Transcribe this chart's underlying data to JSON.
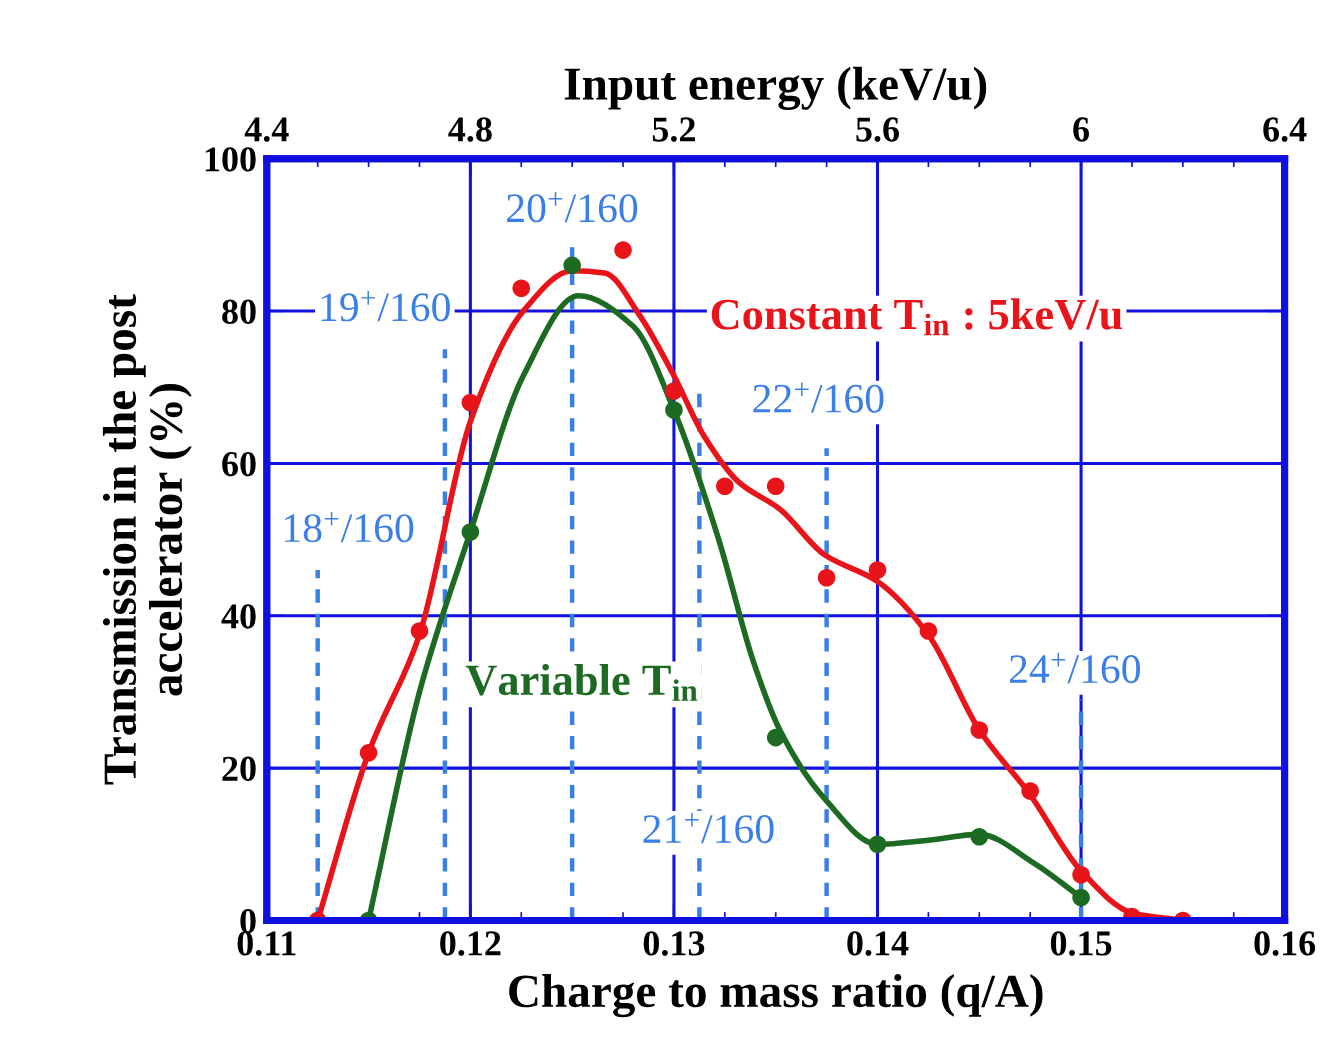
{
  "chart_data": {
    "type": "scatter",
    "xlabel": "Charge to mass ratio (q/A)",
    "ylabel": "Transmission in the post\naccelerator (%)",
    "x2label": "Input energy (keV/u)",
    "xlim": [
      0.11,
      0.16
    ],
    "xticks": [
      0.11,
      0.12,
      0.13,
      0.14,
      0.15,
      0.16
    ],
    "x2lim": [
      4.4,
      6.4
    ],
    "x2ticks": [
      4.4,
      4.8,
      5.2,
      5.6,
      6,
      6.4
    ],
    "ylim": [
      0,
      100
    ],
    "yticks": [
      0,
      20,
      40,
      60,
      80,
      100
    ],
    "grid": true,
    "legend": false,
    "series": [
      {
        "marker": "circle",
        "color": "#e8141a",
        "x": [
          0.1125,
          0.115,
          0.1175,
          0.12,
          0.1225,
          0.1275,
          0.13,
          0.1325,
          0.135,
          0.1375,
          0.14,
          0.1425,
          0.145,
          0.1475,
          0.15,
          0.1525,
          0.155
        ],
        "values": [
          0,
          22,
          38,
          68,
          83,
          88,
          69.5,
          57,
          57,
          45,
          46,
          38,
          25,
          17,
          6,
          0.5,
          0
        ]
      },
      {
        "marker": "circle",
        "color": "#1d6b22",
        "x": [
          0.115,
          0.12,
          0.125,
          0.13,
          0.135,
          0.14,
          0.145,
          0.15
        ],
        "values": [
          0,
          51,
          86,
          67,
          24,
          10,
          11,
          3
        ]
      },
      {
        "type": "line",
        "name": "Constant T$_{in}$ : 5keV/u",
        "color": "#e8141a",
        "x": [
          0.1125,
          0.115,
          0.1175,
          0.12,
          0.1226,
          0.125,
          0.1266,
          0.1283,
          0.13,
          0.1315,
          0.1332,
          0.1352,
          0.1374,
          0.14,
          0.1425,
          0.145,
          0.1475,
          0.15,
          0.1525,
          0.155
        ],
        "values": [
          0,
          22,
          37.5,
          65.5,
          80,
          85.3,
          85,
          79.5,
          71.5,
          63.5,
          57.5,
          54,
          48,
          44.5,
          37.5,
          25,
          16.5,
          6.5,
          1,
          0
        ]
      },
      {
        "type": "line",
        "name": "Variable T$_{in}$",
        "color": "#1d6b22",
        "x": [
          0.115,
          0.1175,
          0.12,
          0.1226,
          0.1253,
          0.128,
          0.13,
          0.1322,
          0.1339,
          0.1352,
          0.1374,
          0.14,
          0.1424,
          0.145,
          0.1477,
          0.15
        ],
        "values": [
          0,
          30,
          51,
          71.5,
          82,
          78,
          67,
          50,
          34,
          25,
          16,
          10,
          10.5,
          11.3,
          7.5,
          3
        ]
      }
    ],
    "ref_lines": [
      {
        "axis": "x",
        "value": 0.1125,
        "color": "#3a7ee8",
        "line_style": "dashed"
      },
      {
        "axis": "x",
        "value": 0.11875,
        "color": "#3a7ee8",
        "line_style": "dashed"
      },
      {
        "axis": "x",
        "value": 0.125,
        "color": "#3a7ee8",
        "line_style": "dashed"
      },
      {
        "axis": "x",
        "value": 0.13125,
        "color": "#3a7ee8",
        "line_style": "dashed"
      },
      {
        "axis": "x",
        "value": 0.1375,
        "color": "#3a7ee8",
        "line_style": "dashed"
      },
      {
        "axis": "x",
        "value": 0.15,
        "color": "#3a7ee8",
        "line_style": "dashed"
      }
    ],
    "annotations": [
      "18$^{+}$/160",
      "19$^{+}$/160",
      "20$^{+}$/160",
      "21$^{+}$/160",
      "22$^{+}$/160",
      "24$^{+}$/160"
    ]
  }
}
